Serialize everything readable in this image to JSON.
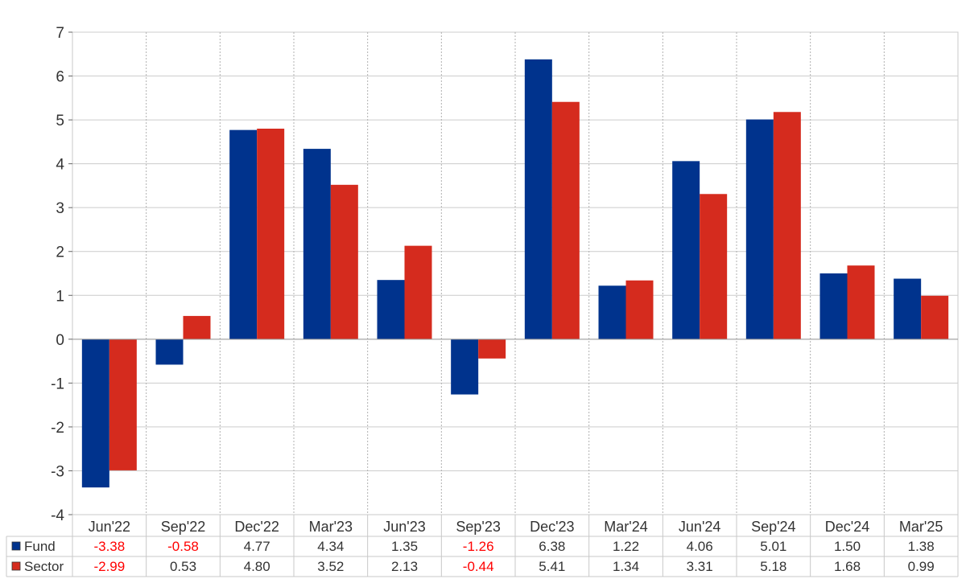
{
  "chart_data": {
    "type": "bar",
    "categories": [
      "Jun'22",
      "Sep'22",
      "Dec'22",
      "Mar'23",
      "Jun'23",
      "Sep'23",
      "Dec'23",
      "Mar'24",
      "Jun'24",
      "Sep'24",
      "Dec'24",
      "Mar'25"
    ],
    "series": [
      {
        "name": "Fund",
        "color": "#00338d",
        "values": [
          -3.38,
          -0.58,
          4.77,
          4.34,
          1.35,
          -1.26,
          6.38,
          1.22,
          4.06,
          5.01,
          1.5,
          1.38
        ]
      },
      {
        "name": "Sector",
        "color": "#d52b1e",
        "values": [
          -2.99,
          0.53,
          4.8,
          3.52,
          2.13,
          -0.44,
          5.41,
          1.34,
          3.31,
          5.18,
          1.68,
          0.99
        ]
      }
    ],
    "table_values": [
      [
        "-3.38",
        "-0.58",
        "4.77",
        "4.34",
        "1.35",
        "-1.26",
        "6.38",
        "1.22",
        "4.06",
        "5.01",
        "1.50",
        "1.38"
      ],
      [
        "-2.99",
        "0.53",
        "4.80",
        "3.52",
        "2.13",
        "-0.44",
        "5.41",
        "1.34",
        "3.31",
        "5.18",
        "1.68",
        "0.99"
      ]
    ],
    "ylim": [
      -4,
      7
    ],
    "yticks": [
      "-4",
      "-3",
      "-2",
      "-1",
      "0",
      "1",
      "2",
      "3",
      "4",
      "5",
      "6",
      "7"
    ],
    "grid": true,
    "legend": "data table",
    "negative_value_color": "#ff0000"
  }
}
